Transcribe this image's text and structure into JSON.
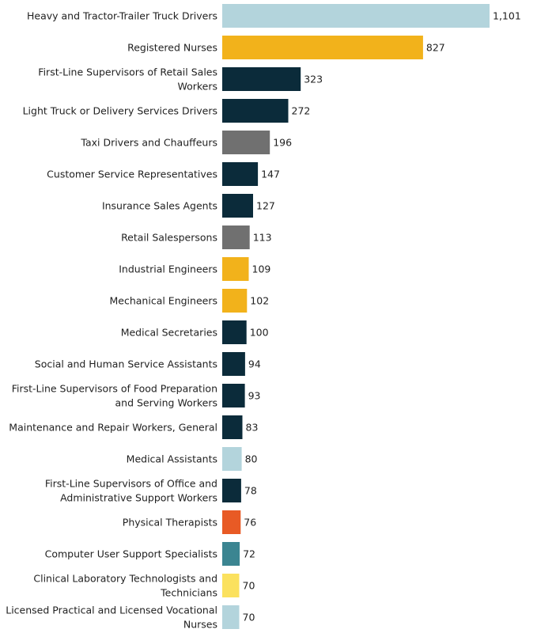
{
  "chart_data": {
    "type": "bar",
    "orientation": "horizontal",
    "title": "",
    "xlabel": "",
    "ylabel": "",
    "grid": false,
    "legend": "none",
    "xlim": [
      0,
      1101
    ],
    "categories": [
      "Heavy and Tractor-Trailer Truck Drivers",
      "Registered Nurses",
      "First-Line Supervisors of Retail Sales Workers",
      "Light Truck or Delivery Services Drivers",
      "Taxi Drivers and Chauffeurs",
      "Customer Service Representatives",
      "Insurance Sales Agents",
      "Retail Salespersons",
      "Industrial Engineers",
      "Mechanical Engineers",
      "Medical Secretaries",
      "Social and Human Service Assistants",
      "First-Line Supervisors of Food Preparation and Serving Workers",
      "Maintenance and Repair Workers, General",
      "Medical Assistants",
      "First-Line Supervisors of Office and Administrative Support Workers",
      "Physical Therapists",
      "Computer User Support Specialists",
      "Clinical Laboratory Technologists and Technicians",
      "Licensed Practical and Licensed Vocational Nurses"
    ],
    "label_lines": [
      [
        "Heavy and Tractor-Trailer Truck Drivers"
      ],
      [
        "Registered Nurses"
      ],
      [
        "First-Line Supervisors of Retail Sales",
        "Workers"
      ],
      [
        "Light Truck or Delivery Services Drivers"
      ],
      [
        "Taxi Drivers and Chauffeurs"
      ],
      [
        "Customer Service Representatives"
      ],
      [
        "Insurance Sales Agents"
      ],
      [
        "Retail Salespersons"
      ],
      [
        "Industrial Engineers"
      ],
      [
        "Mechanical Engineers"
      ],
      [
        "Medical Secretaries"
      ],
      [
        "Social and Human Service Assistants"
      ],
      [
        "First-Line Supervisors of Food Preparation",
        "and Serving Workers"
      ],
      [
        "Maintenance and Repair Workers, General"
      ],
      [
        "Medical Assistants"
      ],
      [
        "First-Line Supervisors of Office and",
        "Administrative Support Workers"
      ],
      [
        "Physical Therapists"
      ],
      [
        "Computer User Support Specialists"
      ],
      [
        "Clinical Laboratory Technologists and",
        "Technicians"
      ],
      [
        "Licensed Practical and Licensed Vocational",
        "Nurses"
      ]
    ],
    "values": [
      1101,
      827,
      323,
      272,
      196,
      147,
      127,
      113,
      109,
      102,
      100,
      94,
      93,
      83,
      80,
      78,
      76,
      72,
      70,
      70
    ],
    "value_labels": [
      "1,101",
      "827",
      "323",
      "272",
      "196",
      "147",
      "127",
      "113",
      "109",
      "102",
      "100",
      "94",
      "93",
      "83",
      "80",
      "78",
      "76",
      "72",
      "70",
      "70"
    ],
    "colors": [
      "#b3d4dc",
      "#f2b21b",
      "#0b2b3a",
      "#0b2b3a",
      "#707070",
      "#0b2b3a",
      "#0b2b3a",
      "#707070",
      "#f2b21b",
      "#f2b21b",
      "#0b2b3a",
      "#0b2b3a",
      "#0b2b3a",
      "#0b2b3a",
      "#b3d4dc",
      "#0b2b3a",
      "#e85a25",
      "#3b8591",
      "#fbe15e",
      "#b3d4dc"
    ]
  }
}
